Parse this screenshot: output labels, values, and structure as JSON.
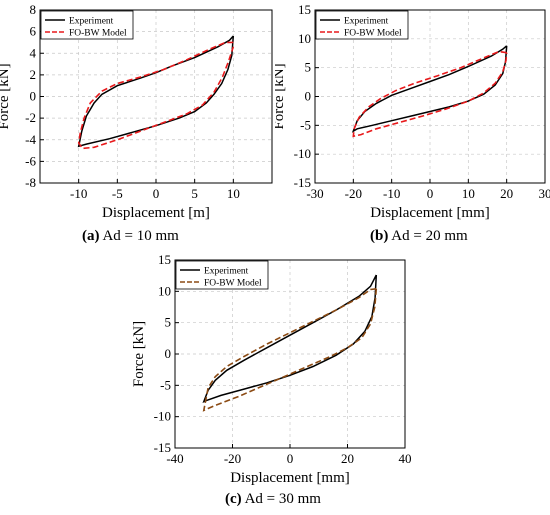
{
  "panels": [
    {
      "caption_letter": "(a)",
      "caption_text": "Ad = 10 mm",
      "legend": [
        "Experiment",
        "FO-BW Model"
      ],
      "colors": {
        "experiment": "#000000",
        "model": "#e8191b"
      },
      "chart_data": {
        "type": "line",
        "xlabel": "Displacement [m]",
        "ylabel": "Force [kN]",
        "xlim": [
          -15,
          15
        ],
        "ylim": [
          -8,
          8
        ],
        "xticks": [
          -10,
          -5,
          0,
          5,
          10
        ],
        "yticks": [
          -8,
          -6,
          -4,
          -2,
          0,
          2,
          4,
          6,
          8
        ],
        "grid": true,
        "legend_position": "top-left",
        "series": [
          {
            "name": "Experiment",
            "style": "solid",
            "points": [
              [
                10,
                5.6
              ],
              [
                9.5,
                5.2
              ],
              [
                8,
                4.6
              ],
              [
                5,
                3.6
              ],
              [
                2,
                2.8
              ],
              [
                0,
                2.2
              ],
              [
                -2,
                1.7
              ],
              [
                -5,
                1.0
              ],
              [
                -7,
                0.2
              ],
              [
                -8,
                -0.6
              ],
              [
                -9,
                -1.8
              ],
              [
                -9.6,
                -3.2
              ],
              [
                -10,
                -4.6
              ],
              [
                -9,
                -4.4
              ],
              [
                -6,
                -3.9
              ],
              [
                -3,
                -3.3
              ],
              [
                0,
                -2.7
              ],
              [
                3,
                -2.0
              ],
              [
                5,
                -1.4
              ],
              [
                6.5,
                -0.6
              ],
              [
                7.5,
                0.2
              ],
              [
                8.5,
                1.2
              ],
              [
                9.3,
                2.5
              ],
              [
                9.8,
                3.8
              ],
              [
                10,
                5.6
              ]
            ]
          },
          {
            "name": "FO-BW Model",
            "style": "dashed",
            "points": [
              [
                10,
                5.0
              ],
              [
                9,
                5.0
              ],
              [
                7,
                4.4
              ],
              [
                4,
                3.4
              ],
              [
                1,
                2.5
              ],
              [
                -2,
                1.8
              ],
              [
                -5,
                1.2
              ],
              [
                -7,
                0.5
              ],
              [
                -8.5,
                -0.6
              ],
              [
                -9.3,
                -2.0
              ],
              [
                -9.8,
                -3.4
              ],
              [
                -10,
                -4.3
              ],
              [
                -9.5,
                -4.8
              ],
              [
                -8,
                -4.7
              ],
              [
                -5,
                -4.0
              ],
              [
                -2,
                -3.2
              ],
              [
                1,
                -2.4
              ],
              [
                4,
                -1.6
              ],
              [
                6,
                -0.8
              ],
              [
                7.5,
                0.4
              ],
              [
                8.6,
                1.8
              ],
              [
                9.4,
                3.3
              ],
              [
                10,
                4.6
              ]
            ]
          }
        ]
      }
    },
    {
      "caption_letter": "(b)",
      "caption_text": "Ad = 20 mm",
      "legend": [
        "Experiment",
        "FO-BW Model"
      ],
      "colors": {
        "experiment": "#000000",
        "model": "#e8191b"
      },
      "chart_data": {
        "type": "line",
        "xlabel": "Displacement [mm]",
        "ylabel": "Force [kN]",
        "xlim": [
          -30,
          30
        ],
        "ylim": [
          -15,
          15
        ],
        "xticks": [
          -30,
          -20,
          -10,
          0,
          10,
          20,
          30
        ],
        "yticks": [
          -15,
          -10,
          -5,
          0,
          5,
          10,
          15
        ],
        "grid": true,
        "legend_position": "top-left",
        "series": [
          {
            "name": "Experiment",
            "style": "solid",
            "points": [
              [
                20,
                8.8
              ],
              [
                19,
                8.2
              ],
              [
                16,
                7.0
              ],
              [
                10,
                5.2
              ],
              [
                5,
                3.8
              ],
              [
                0,
                2.6
              ],
              [
                -5,
                1.4
              ],
              [
                -10,
                0.2
              ],
              [
                -14,
                -1.2
              ],
              [
                -17,
                -2.6
              ],
              [
                -19,
                -4.2
              ],
              [
                -20,
                -6.0
              ],
              [
                -19,
                -5.6
              ],
              [
                -15,
                -5.0
              ],
              [
                -10,
                -4.2
              ],
              [
                -5,
                -3.4
              ],
              [
                0,
                -2.6
              ],
              [
                5,
                -1.8
              ],
              [
                10,
                -0.8
              ],
              [
                14,
                0.4
              ],
              [
                17,
                2.0
              ],
              [
                19,
                4.0
              ],
              [
                19.7,
                6.0
              ],
              [
                20,
                8.8
              ]
            ]
          },
          {
            "name": "FO-BW Model",
            "style": "dashed",
            "points": [
              [
                20,
                7.6
              ],
              [
                18,
                7.8
              ],
              [
                14,
                6.7
              ],
              [
                8,
                5.0
              ],
              [
                2,
                3.6
              ],
              [
                -4,
                2.3
              ],
              [
                -9,
                1.0
              ],
              [
                -13,
                -0.4
              ],
              [
                -16,
                -1.8
              ],
              [
                -18.5,
                -3.6
              ],
              [
                -19.8,
                -5.6
              ],
              [
                -20,
                -6.9
              ],
              [
                -18,
                -6.6
              ],
              [
                -14,
                -5.6
              ],
              [
                -8,
                -4.5
              ],
              [
                -2,
                -3.4
              ],
              [
                4,
                -2.2
              ],
              [
                10,
                -0.8
              ],
              [
                14,
                0.6
              ],
              [
                17,
                2.3
              ],
              [
                19,
                4.3
              ],
              [
                19.8,
                6.2
              ],
              [
                20,
                7.6
              ]
            ]
          }
        ]
      }
    },
    {
      "caption_letter": "(c)",
      "caption_text": "Ad = 30 mm",
      "legend": [
        "Experiment",
        "FO-BW Model"
      ],
      "colors": {
        "experiment": "#000000",
        "model": "#8b4a13"
      },
      "chart_data": {
        "type": "line",
        "xlabel": "Displacement [mm]",
        "ylabel": "Force [kN]",
        "xlim": [
          -40,
          40
        ],
        "ylim": [
          -15,
          15
        ],
        "xticks": [
          -40,
          -20,
          0,
          20,
          40
        ],
        "yticks": [
          -15,
          -10,
          -5,
          0,
          5,
          10,
          15
        ],
        "grid": true,
        "legend_position": "top-left",
        "series": [
          {
            "name": "Experiment",
            "style": "solid",
            "points": [
              [
                30,
                12.6
              ],
              [
                28,
                10.8
              ],
              [
                24,
                9.2
              ],
              [
                16,
                7.0
              ],
              [
                8,
                5.0
              ],
              [
                0,
                3.0
              ],
              [
                -8,
                1.0
              ],
              [
                -16,
                -1.0
              ],
              [
                -22,
                -2.6
              ],
              [
                -26,
                -4.2
              ],
              [
                -28.5,
                -5.8
              ],
              [
                -30,
                -7.6
              ],
              [
                -29,
                -7.4
              ],
              [
                -24,
                -6.6
              ],
              [
                -16,
                -5.6
              ],
              [
                -8,
                -4.6
              ],
              [
                0,
                -3.4
              ],
              [
                8,
                -2.0
              ],
              [
                16,
                -0.2
              ],
              [
                22,
                1.6
              ],
              [
                26,
                3.6
              ],
              [
                28.5,
                6.0
              ],
              [
                29.6,
                9.0
              ],
              [
                30,
                12.6
              ]
            ]
          },
          {
            "name": "FO-BW Model",
            "style": "dashed",
            "points": [
              [
                30,
                10.4
              ],
              [
                28,
                10.3
              ],
              [
                24,
                9.0
              ],
              [
                16,
                7.0
              ],
              [
                8,
                5.2
              ],
              [
                0,
                3.4
              ],
              [
                -8,
                1.6
              ],
              [
                -16,
                -0.4
              ],
              [
                -22,
                -2.0
              ],
              [
                -26,
                -3.6
              ],
              [
                -28.5,
                -5.4
              ],
              [
                -30,
                -9.0
              ],
              [
                -26,
                -8.2
              ],
              [
                -18,
                -6.8
              ],
              [
                -10,
                -5.2
              ],
              [
                -2,
                -3.6
              ],
              [
                6,
                -2.0
              ],
              [
                14,
                -0.4
              ],
              [
                20,
                1.0
              ],
              [
                25,
                2.6
              ],
              [
                28,
                4.8
              ],
              [
                29.5,
                7.5
              ],
              [
                30,
                10.4
              ]
            ]
          }
        ]
      }
    }
  ]
}
